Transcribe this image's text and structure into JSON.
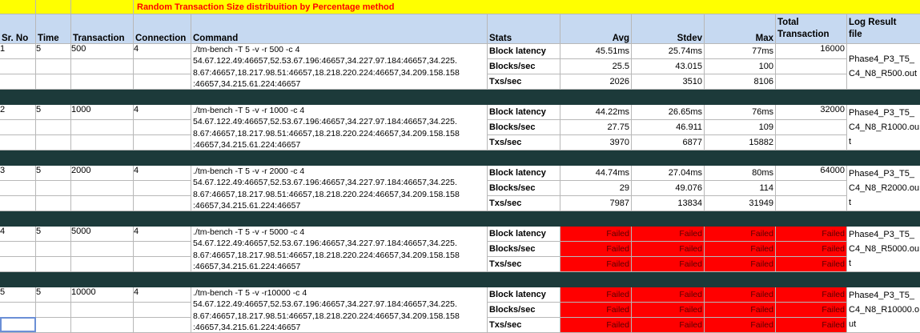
{
  "title": "Random Transaction Size distribuition by Percentage method",
  "headers": {
    "srno": "Sr. No",
    "time": "Time",
    "transaction": "Transaction",
    "connection": "Connection",
    "command": "Command",
    "stats": "Stats",
    "avg": "Avg",
    "stdev": "Stdev",
    "max": "Max",
    "total_line1": "Total",
    "total_line2": "Transaction",
    "log_line1": "Log Result",
    "log_line2": "file"
  },
  "rows": [
    {
      "srno": "1",
      "time": "5",
      "transaction": "500",
      "connection": "4",
      "command": [
        "./tm-bench -T 5 -v -r 500 -c 4",
        "54.67.122.49:46657,52.53.67.196:46657,34.227.97.184:46657,34.225.",
        "8.67:46657,18.217.98.51:46657,18.218.220.224:46657,34.209.158.158",
        ":46657,34.215.61.224:46657"
      ],
      "stats": [
        "Block latency",
        "Blocks/sec",
        "Txs/sec"
      ],
      "avg": [
        "45.51ms",
        "25.5",
        "2026"
      ],
      "stdev": [
        "25.74ms",
        "43.015",
        "3510"
      ],
      "max": [
        "77ms",
        "100",
        "8106"
      ],
      "total": "16000",
      "failed": false,
      "log": "Phase4_P3_T5_C4_N8_R500.out"
    },
    {
      "srno": "2",
      "time": "5",
      "transaction": "1000",
      "connection": "4",
      "command": [
        "./tm-bench -T 5 -v -r 1000 -c 4",
        "54.67.122.49:46657,52.53.67.196:46657,34.227.97.184:46657,34.225.",
        "8.67:46657,18.217.98.51:46657,18.218.220.224:46657,34.209.158.158",
        ":46657,34.215.61.224:46657"
      ],
      "stats": [
        "Block latency",
        "Blocks/sec",
        "Txs/sec"
      ],
      "avg": [
        "44.22ms",
        "27.75",
        "3970"
      ],
      "stdev": [
        "26.65ms",
        "46.911",
        "6877"
      ],
      "max": [
        "76ms",
        "109",
        "15882"
      ],
      "total": "32000",
      "failed": false,
      "log": "Phase4_P3_T5_C4_N8_R1000.out"
    },
    {
      "srno": "3",
      "time": "5",
      "transaction": "2000",
      "connection": "4",
      "command": [
        "./tm-bench -T 5 -v -r 2000 -c 4",
        "54.67.122.49:46657,52.53.67.196:46657,34.227.97.184:46657,34.225.",
        "8.67:46657,18.217.98.51:46657,18.218.220.224:46657,34.209.158.158",
        ":46657,34.215.61.224:46657"
      ],
      "stats": [
        "Block latency",
        "Blocks/sec",
        "Txs/sec"
      ],
      "avg": [
        "44.74ms",
        "29",
        "7987"
      ],
      "stdev": [
        "27.04ms",
        "49.076",
        "13834"
      ],
      "max": [
        "80ms",
        "114",
        "31949"
      ],
      "total": "64000",
      "failed": false,
      "log": "Phase4_P3_T5_C4_N8_R2000.out"
    },
    {
      "srno": "4",
      "time": "5",
      "transaction": "5000",
      "connection": "4",
      "command": [
        "./tm-bench -T 5 -v -r 5000 -c 4",
        "54.67.122.49:46657,52.53.67.196:46657,34.227.97.184:46657,34.225.",
        "8.67:46657,18.217.98.51:46657,18.218.220.224:46657,34.209.158.158",
        ":46657,34.215.61.224:46657"
      ],
      "stats": [
        "Block latency",
        "Blocks/sec",
        "Txs/sec"
      ],
      "avg": [
        "Failed",
        "Failed",
        "Failed"
      ],
      "stdev": [
        "Failed",
        "Failed",
        "Failed"
      ],
      "max": [
        "Failed",
        "Failed",
        "Failed"
      ],
      "total": "Failed",
      "total_extra": [
        "Failed",
        "Failed"
      ],
      "failed": true,
      "log": "Phase4_P3_T5_C4_N8_R5000.out"
    },
    {
      "srno": "5",
      "time": "5",
      "transaction": "10000",
      "connection": "4",
      "command": [
        "./tm-bench -T 5 -v -r10000 -c 4",
        "54.67.122.49:46657,52.53.67.196:46657,34.227.97.184:46657,34.225.",
        "8.67:46657,18.217.98.51:46657,18.218.220.224:46657,34.209.158.158",
        ":46657,34.215.61.224:46657"
      ],
      "stats": [
        "Block latency",
        "Blocks/sec",
        "Txs/sec"
      ],
      "avg": [
        "Failed",
        "Failed",
        "Failed"
      ],
      "stdev": [
        "Failed",
        "Failed",
        "Failed"
      ],
      "max": [
        "Failed",
        "Failed",
        "Failed"
      ],
      "total": "Failed",
      "total_extra": [
        "Failed",
        "Failed"
      ],
      "failed": true,
      "log": "Phase4_P3_T5_C4_N8_R10000.out"
    }
  ],
  "colors": {
    "header_bg": "#c6d9f1",
    "title_bg": "#ffff00",
    "separator": "#1c3a3a",
    "failed_bg": "#ff0000"
  }
}
